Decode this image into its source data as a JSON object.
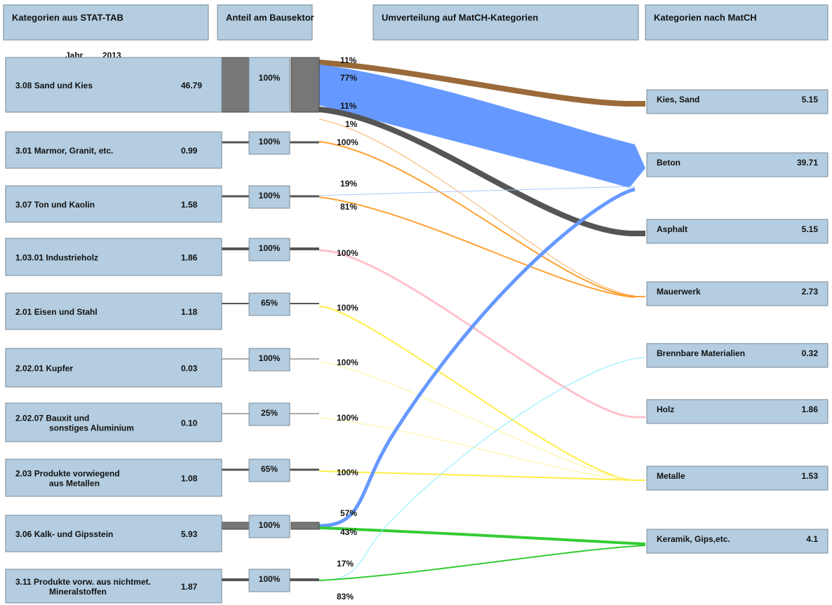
{
  "headers": [
    "Kategorien aus STAT-TAB",
    "Anteil am Bausektor",
    "Umverteilung auf MatCH-Kategorien",
    "Kategorien nach MatCH"
  ],
  "year_label": "Jahr",
  "year": "2013",
  "sources": [
    {
      "label": [
        "3.08 Sand und Kies"
      ],
      "value": "46.79",
      "share": "100%"
    },
    {
      "label": [
        "3.01 Marmor, Granit, etc."
      ],
      "value": "0.99",
      "share": "100%"
    },
    {
      "label": [
        "3.07 Ton und Kaolin"
      ],
      "value": "1.58",
      "share": "100%"
    },
    {
      "label": [
        "1.03.01 Industrieholz"
      ],
      "value": "1.86",
      "share": "100%"
    },
    {
      "label": [
        "2.01 Eisen und Stahl"
      ],
      "value": "1.18",
      "share": "65%"
    },
    {
      "label": [
        "2.02.01 Kupfer"
      ],
      "value": "0.03",
      "share": "100%"
    },
    {
      "label": [
        "2.02.07  Bauxit und",
        "sonstiges Aluminium"
      ],
      "value": "0.10",
      "share": "25%"
    },
    {
      "label": [
        "2.03  Produkte vorwiegend",
        "aus Metallen"
      ],
      "value": "1.08",
      "share": "65%"
    },
    {
      "label": [
        "3.06  Kalk- und Gipsstein"
      ],
      "value": "5.93",
      "share": "100%"
    },
    {
      "label": [
        "3.11    Produkte vorw. aus nichtmet.",
        "Mineralstoffen"
      ],
      "value": "1.87",
      "share": "100%"
    }
  ],
  "targets": [
    {
      "label": "Kies, Sand",
      "value": "5.15"
    },
    {
      "label": "Beton",
      "value": "39.71"
    },
    {
      "label": "Asphalt",
      "value": "5.15"
    },
    {
      "label": "Mauerwerk",
      "value": "2.73"
    },
    {
      "label": "Brennbare Materialien",
      "value": "0.32"
    },
    {
      "label": "Holz",
      "value": "1.86"
    },
    {
      "label": "Metalle",
      "value": "1.53"
    },
    {
      "label": "Keramik, Gips,etc.",
      "value": "4.1"
    }
  ],
  "flow_labels": [
    "11%",
    "77%",
    "11%",
    "1%",
    "100%",
    "19%",
    "81%",
    "100%",
    "100%",
    "100%",
    "100%",
    "100%",
    "57%",
    "43%",
    "17%",
    "83%"
  ]
}
